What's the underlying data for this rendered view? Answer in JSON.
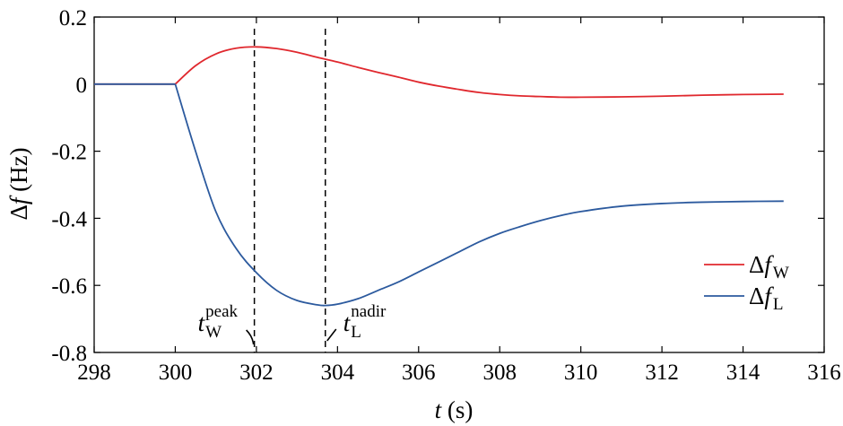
{
  "chart_data": {
    "type": "line",
    "title": "",
    "xlabel_var": "t",
    "xlabel_unit": " (s)",
    "ylabel_delta": "Δ",
    "ylabel_var": "f",
    "ylabel_unit": " (Hz)",
    "xlim": [
      298,
      316
    ],
    "ylim": [
      -0.8,
      0.2
    ],
    "xticks": [
      298,
      300,
      302,
      304,
      306,
      308,
      310,
      312,
      314,
      316
    ],
    "xtick_labels": [
      "298",
      "300",
      "302",
      "304",
      "306",
      "308",
      "310",
      "312",
      "314",
      "316"
    ],
    "yticks": [
      0.2,
      0,
      -0.2,
      -0.4,
      -0.6,
      -0.8
    ],
    "ytick_labels": [
      "0.2",
      "0",
      "-0.2",
      "-0.4",
      "-0.6",
      "-0.8"
    ],
    "grid": false,
    "legend_position": "bottom-right",
    "series": [
      {
        "name": "Δf_W",
        "name_base": "Δ",
        "name_var": "f",
        "name_sub": "W",
        "color": "#e0282e",
        "x": [
          298,
          300,
          300.5,
          301,
          301.5,
          302,
          302.5,
          303,
          303.5,
          304,
          304.5,
          305,
          305.5,
          306,
          306.5,
          307,
          307.5,
          308,
          308.5,
          309,
          309.5,
          310,
          311,
          312,
          313,
          314,
          315
        ],
        "y": [
          0,
          0,
          0.055,
          0.09,
          0.107,
          0.111,
          0.106,
          0.095,
          0.08,
          0.066,
          0.05,
          0.035,
          0.021,
          0.006,
          -0.006,
          -0.016,
          -0.025,
          -0.031,
          -0.035,
          -0.037,
          -0.039,
          -0.039,
          -0.038,
          -0.036,
          -0.033,
          -0.031,
          -0.03
        ]
      },
      {
        "name": "Δf_L",
        "name_base": "Δ",
        "name_var": "f",
        "name_sub": "L",
        "color": "#2c5a9e",
        "x": [
          298,
          300,
          300.5,
          301,
          301.5,
          302,
          302.5,
          303,
          303.5,
          303.7,
          304,
          304.5,
          305,
          305.5,
          306,
          306.5,
          307,
          307.5,
          308,
          308.5,
          309,
          309.5,
          310,
          311,
          312,
          313,
          314,
          315
        ],
        "y": [
          0,
          0,
          -0.2,
          -0.38,
          -0.49,
          -0.562,
          -0.615,
          -0.645,
          -0.658,
          -0.66,
          -0.656,
          -0.64,
          -0.615,
          -0.59,
          -0.56,
          -0.53,
          -0.5,
          -0.47,
          -0.445,
          -0.425,
          -0.407,
          -0.392,
          -0.38,
          -0.364,
          -0.356,
          -0.352,
          -0.35,
          -0.349
        ]
      }
    ],
    "annotations": [
      {
        "id": "t_peak",
        "x": 301.95,
        "label_base": "t",
        "label_sub": "W",
        "label_sup": "peak"
      },
      {
        "id": "t_nadir",
        "x": 303.7,
        "label_base": "t",
        "label_sub": "L",
        "label_sup": "nadir"
      }
    ]
  }
}
